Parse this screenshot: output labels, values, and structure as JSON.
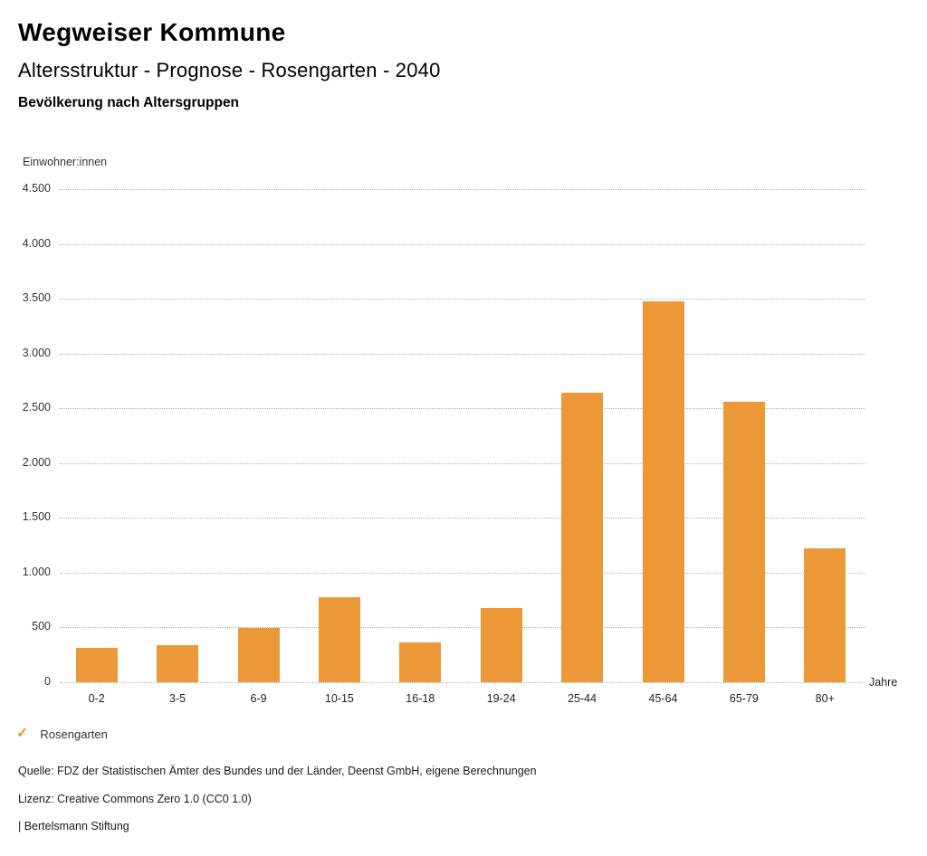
{
  "header": {
    "title": "Wegweiser Kommune",
    "subtitle": "Altersstruktur - Prognose - Rosengarten - 2040",
    "chart_heading": "Bevölkerung nach Altersgruppen"
  },
  "chart_data": {
    "type": "bar",
    "title": "Bevölkerung nach Altersgruppen",
    "ylabel": "Einwohner:innen",
    "xlabel": "Jahre",
    "categories": [
      "0-2",
      "3-5",
      "6-9",
      "10-15",
      "16-18",
      "19-24",
      "25-44",
      "45-64",
      "65-79",
      "80+"
    ],
    "values": [
      315,
      340,
      495,
      780,
      365,
      680,
      2645,
      3475,
      2560,
      1225
    ],
    "series_name": "Rosengarten",
    "bar_color": "#EC9838",
    "ylim": [
      0,
      4500
    ],
    "ytick_step": 500,
    "ytick_labels": [
      "0",
      "500",
      "1.000",
      "1.500",
      "2.000",
      "2.500",
      "3.000",
      "3.500",
      "4.000",
      "4.500"
    ],
    "grid": "dotted horizontal",
    "legend_position": "bottom-left"
  },
  "legend": {
    "check_icon": "✓",
    "label": "Rosengarten"
  },
  "footer": {
    "source": "Quelle: FDZ der Statistischen Ämter des Bundes und der Länder, Deenst GmbH, eigene Berechnungen",
    "license": "Lizenz: Creative Commons Zero 1.0 (CC0 1.0)",
    "attribution": "| Bertelsmann Stiftung"
  }
}
